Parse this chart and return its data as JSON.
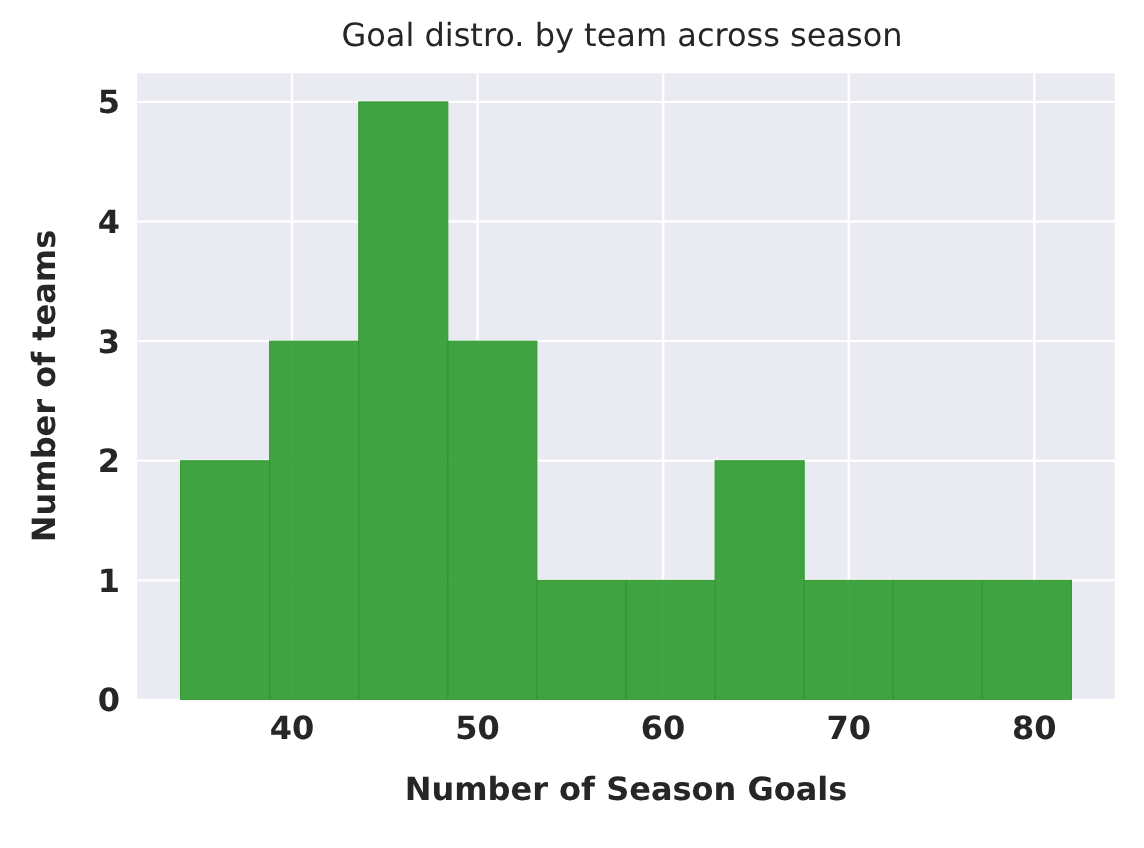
{
  "chart_data": {
    "type": "histogram",
    "title": "Goal distro. by team across season",
    "xlabel": "Number of Season Goals",
    "ylabel": "Number of teams",
    "bins": [
      34,
      38.8,
      43.6,
      48.4,
      53.2,
      58,
      62.8,
      67.6,
      72.4,
      77.2,
      82
    ],
    "values": [
      2,
      3,
      5,
      3,
      1,
      1,
      2,
      1,
      1,
      1
    ],
    "color": "#2e9a2e",
    "xlim": [
      31.6,
      84.4
    ],
    "xticks": [
      40,
      50,
      60,
      70,
      80
    ],
    "ylim": [
      0,
      5.25
    ],
    "yticks": [
      0,
      1,
      2,
      3,
      4,
      5
    ],
    "grid": true
  }
}
